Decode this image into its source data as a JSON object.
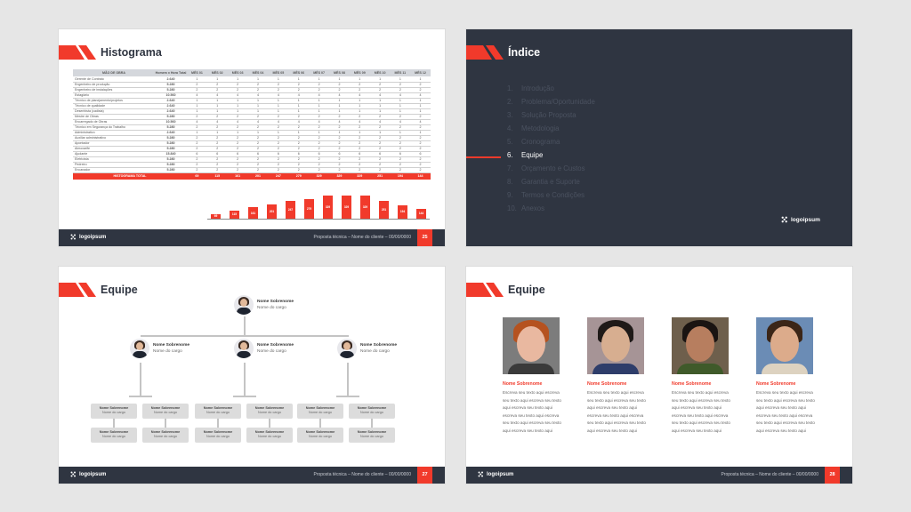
{
  "colors": {
    "accent": "#f13a2b",
    "dark": "#2f3541",
    "gray_box": "#dcdcdc"
  },
  "footer": {
    "logo": "logoipsum",
    "text": "Proposta técnica – Nome do cliente – 00/00/0000"
  },
  "slides": [
    {
      "title": "Histograma",
      "page": "25",
      "table": {
        "headers": [
          "MÃO DE OBRA",
          "Homem x Hora Total",
          "MÊS 01",
          "MÊS 02",
          "MÊS 03",
          "MÊS 04",
          "MÊS 05",
          "MÊS 06",
          "MÊS 07",
          "MÊS 08",
          "MÊS 09",
          "MÊS 10",
          "MÊS 11",
          "MÊS 12"
        ],
        "rows": [
          {
            "role": "Gerente de Contrato",
            "total": "2.640",
            "m": 1
          },
          {
            "role": "Engenheiro de produção",
            "total": "5.280",
            "m": 2
          },
          {
            "role": "Engenheiro de instalações",
            "total": "5.280",
            "m": 2
          },
          {
            "role": "Estagiário",
            "total": "10.560",
            "m": 4
          },
          {
            "role": "Técnico de planejamento/projetos",
            "total": "2.640",
            "m": 1
          },
          {
            "role": "Técnico de qualidade",
            "total": "2.640",
            "m": 1
          },
          {
            "role": "Desenhista (cadista)",
            "total": "2.640",
            "m": 1
          },
          {
            "role": "Mestre de Obras",
            "total": "5.280",
            "m": 2
          },
          {
            "role": "Encarregado de Obras",
            "total": "10.560",
            "m": 4
          },
          {
            "role": "Técnico em Segurança do Trabalho",
            "total": "5.280",
            "m": 2
          },
          {
            "role": "Administrativo",
            "total": "2.640",
            "m": 1
          },
          {
            "role": "Auxiliar administrativo",
            "total": "5.280",
            "m": 2
          },
          {
            "role": "Apontador",
            "total": "5.280",
            "m": 2
          },
          {
            "role": "Almoxarife",
            "total": "5.280",
            "m": 2
          },
          {
            "role": "Ajudante",
            "total": "15.840",
            "m": 6
          },
          {
            "role": "Eletricista",
            "total": "5.280",
            "m": 2
          },
          {
            "role": "Pedreiro",
            "total": "5.280",
            "m": 2
          },
          {
            "role": "Encanador",
            "total": "5.280",
            "m": 2
          }
        ],
        "total_label": "HISTOGRAMA TOTAL",
        "month_totals": [
          69,
          115,
          161,
          201,
          247,
          279,
          329,
          329,
          329,
          251,
          194,
          144
        ]
      }
    },
    {
      "title": "Índice",
      "items": [
        {
          "n": "1.",
          "label": "Introdução"
        },
        {
          "n": "2.",
          "label": "Problema/Oportunidade"
        },
        {
          "n": "3.",
          "label": "Solução Proposta"
        },
        {
          "n": "4.",
          "label": "Metodologia"
        },
        {
          "n": "5.",
          "label": "Cronograma"
        },
        {
          "n": "6.",
          "label": "Equipe",
          "active": true
        },
        {
          "n": "7.",
          "label": "Orçamento e Custos"
        },
        {
          "n": "8.",
          "label": "Garantia e Suporte"
        },
        {
          "n": "9.",
          "label": "Termos e Condições"
        },
        {
          "n": "10.",
          "label": "Anexos"
        }
      ],
      "logo": "logoipsum"
    },
    {
      "title": "Equipe",
      "page": "27",
      "member_name": "Nome Sobrenome",
      "member_role": "Nome do cargo"
    },
    {
      "title": "Equipe",
      "page": "28",
      "cards": [
        {
          "name": "Nome Sobrenome",
          "text": "Escreva seu texto aqui escreva seu texto aqui escreva seu texto aqui escreva seu texto aqui escreva seu texto aqui escreva seu texto aqui escreva seu texto aqui escreva seu texto aqui"
        },
        {
          "name": "Nome Sobrenome",
          "text": "Escreva seu texto aqui escreva seu texto aqui escreva seu texto aqui escreva seu texto aqui escreva seu texto aqui escreva seu texto aqui escreva seu texto aqui escreva seu texto aqui"
        },
        {
          "name": "Nome Sobrenome",
          "text": "Escreva seu texto aqui escreva seu texto aqui escreva seu texto aqui escreva seu texto aqui escreva seu texto aqui escreva seu texto aqui escreva seu texto aqui escreva seu texto aqui"
        },
        {
          "name": "Nome Sobrenome",
          "text": "Escreva seu texto aqui escreva seu texto aqui escreva seu texto aqui escreva seu texto aqui escreva seu texto aqui escreva seu texto aqui escreva seu texto aqui escreva seu texto aqui"
        }
      ]
    }
  ]
}
